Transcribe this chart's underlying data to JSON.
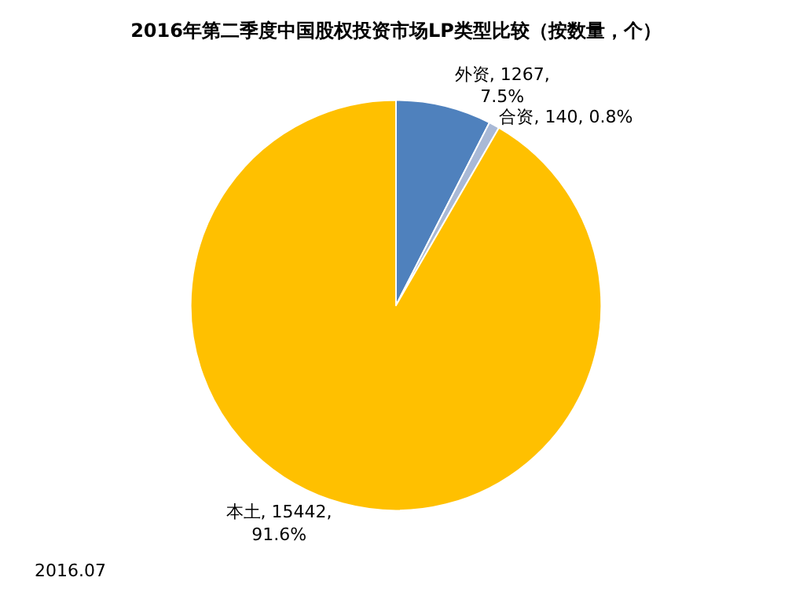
{
  "chart_data": {
    "type": "pie",
    "title": "2016年第二季度中国股权投资市场LP类型比较（按数量，个）",
    "categories": [
      "外资",
      "合资",
      "本土"
    ],
    "values": [
      1267,
      140,
      15442
    ],
    "colors": [
      "#4f81bd",
      "#a9b9d6",
      "#ffc000"
    ],
    "value_labels": [
      "1267, 7.5%",
      "140, 0.8%",
      "15442, 91.6%"
    ],
    "annotations": [
      "2016.07"
    ],
    "legend": false
  }
}
